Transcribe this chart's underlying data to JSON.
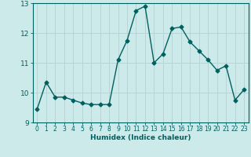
{
  "x": [
    0,
    1,
    2,
    3,
    4,
    5,
    6,
    7,
    8,
    9,
    10,
    11,
    12,
    13,
    14,
    15,
    16,
    17,
    18,
    19,
    20,
    21,
    22,
    23
  ],
  "y": [
    9.45,
    10.35,
    9.85,
    9.85,
    9.75,
    9.65,
    9.6,
    9.6,
    9.6,
    11.1,
    11.75,
    12.75,
    12.9,
    11.0,
    11.3,
    12.15,
    12.2,
    11.7,
    11.4,
    11.1,
    10.75,
    10.9,
    9.75,
    10.1
  ],
  "xlabel": "Humidex (Indice chaleur)",
  "ylim": [
    9,
    13
  ],
  "xlim": [
    -0.5,
    23.5
  ],
  "yticks": [
    9,
    10,
    11,
    12,
    13
  ],
  "xticks": [
    0,
    1,
    2,
    3,
    4,
    5,
    6,
    7,
    8,
    9,
    10,
    11,
    12,
    13,
    14,
    15,
    16,
    17,
    18,
    19,
    20,
    21,
    22,
    23
  ],
  "line_color": "#006060",
  "marker": "D",
  "marker_size": 2.5,
  "bg_color": "#cceaea",
  "grid_color": "#b8d4d4",
  "tick_fontsize": 5.5,
  "label_fontsize": 6.5
}
